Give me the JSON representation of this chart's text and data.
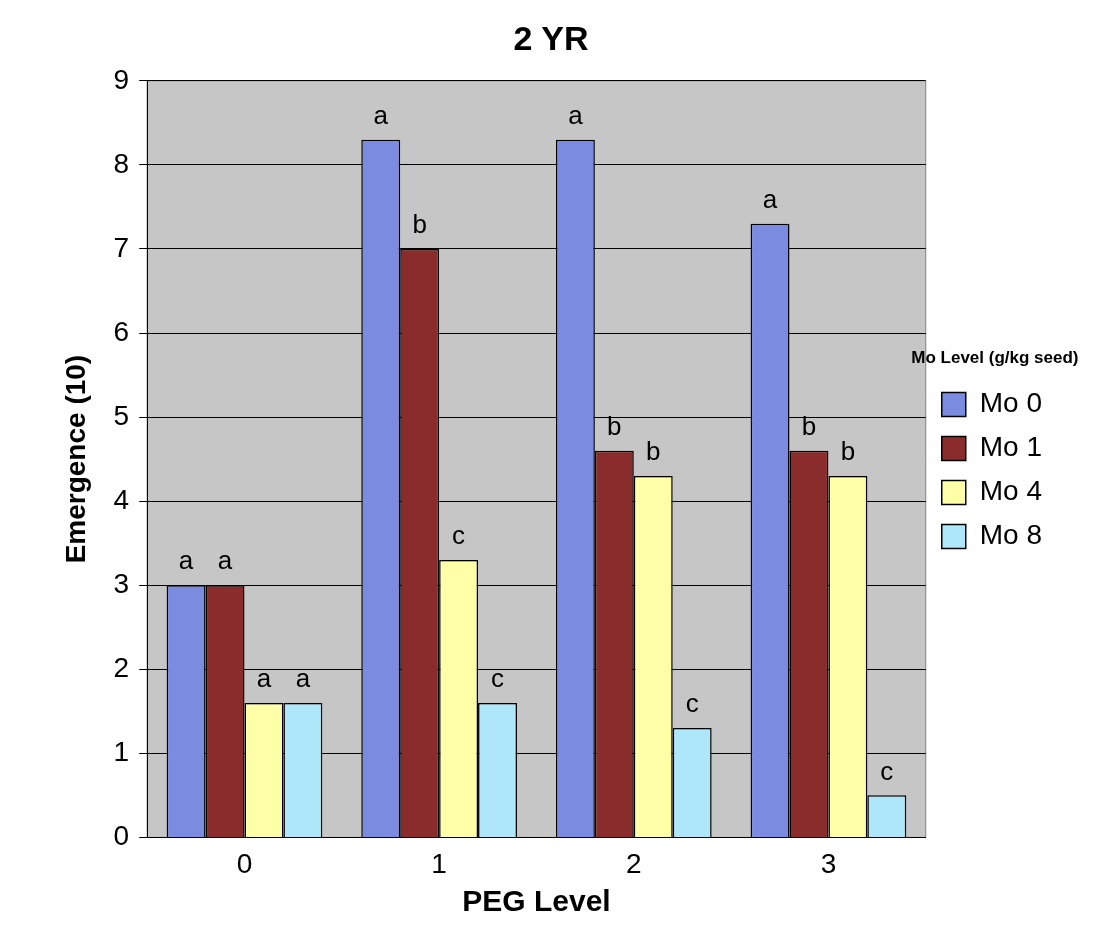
{
  "chart_data": {
    "type": "bar",
    "title": "2 YR",
    "xlabel": "PEG Level",
    "ylabel": "Emergence (10)",
    "legend_title": "Mo Level (g/kg seed)",
    "categories": [
      "0",
      "1",
      "2",
      "3"
    ],
    "series": [
      {
        "name": "Mo 0",
        "color": "#7b8be0",
        "values": [
          3.0,
          8.3,
          8.3,
          7.3
        ],
        "value_labels": [
          "a",
          "a",
          "a",
          "a"
        ]
      },
      {
        "name": "Mo 1",
        "color": "#8b2c2c",
        "values": [
          3.0,
          7.0,
          4.6,
          4.6
        ],
        "value_labels": [
          "a",
          "b",
          "b",
          "b"
        ]
      },
      {
        "name": "Mo 4",
        "color": "#ffffa8",
        "values": [
          1.6,
          3.3,
          4.3,
          4.3
        ],
        "value_labels": [
          "a",
          "c",
          "b",
          "b"
        ]
      },
      {
        "name": "Mo 8",
        "color": "#aee6fa",
        "values": [
          1.6,
          1.6,
          1.3,
          0.5
        ],
        "value_labels": [
          "a",
          "c",
          "c",
          "c"
        ]
      }
    ],
    "ylim": [
      0,
      9
    ],
    "yticks": [
      0,
      1,
      2,
      3,
      4,
      5,
      6,
      7,
      8,
      9
    ],
    "grid": "y",
    "legend": "right"
  }
}
